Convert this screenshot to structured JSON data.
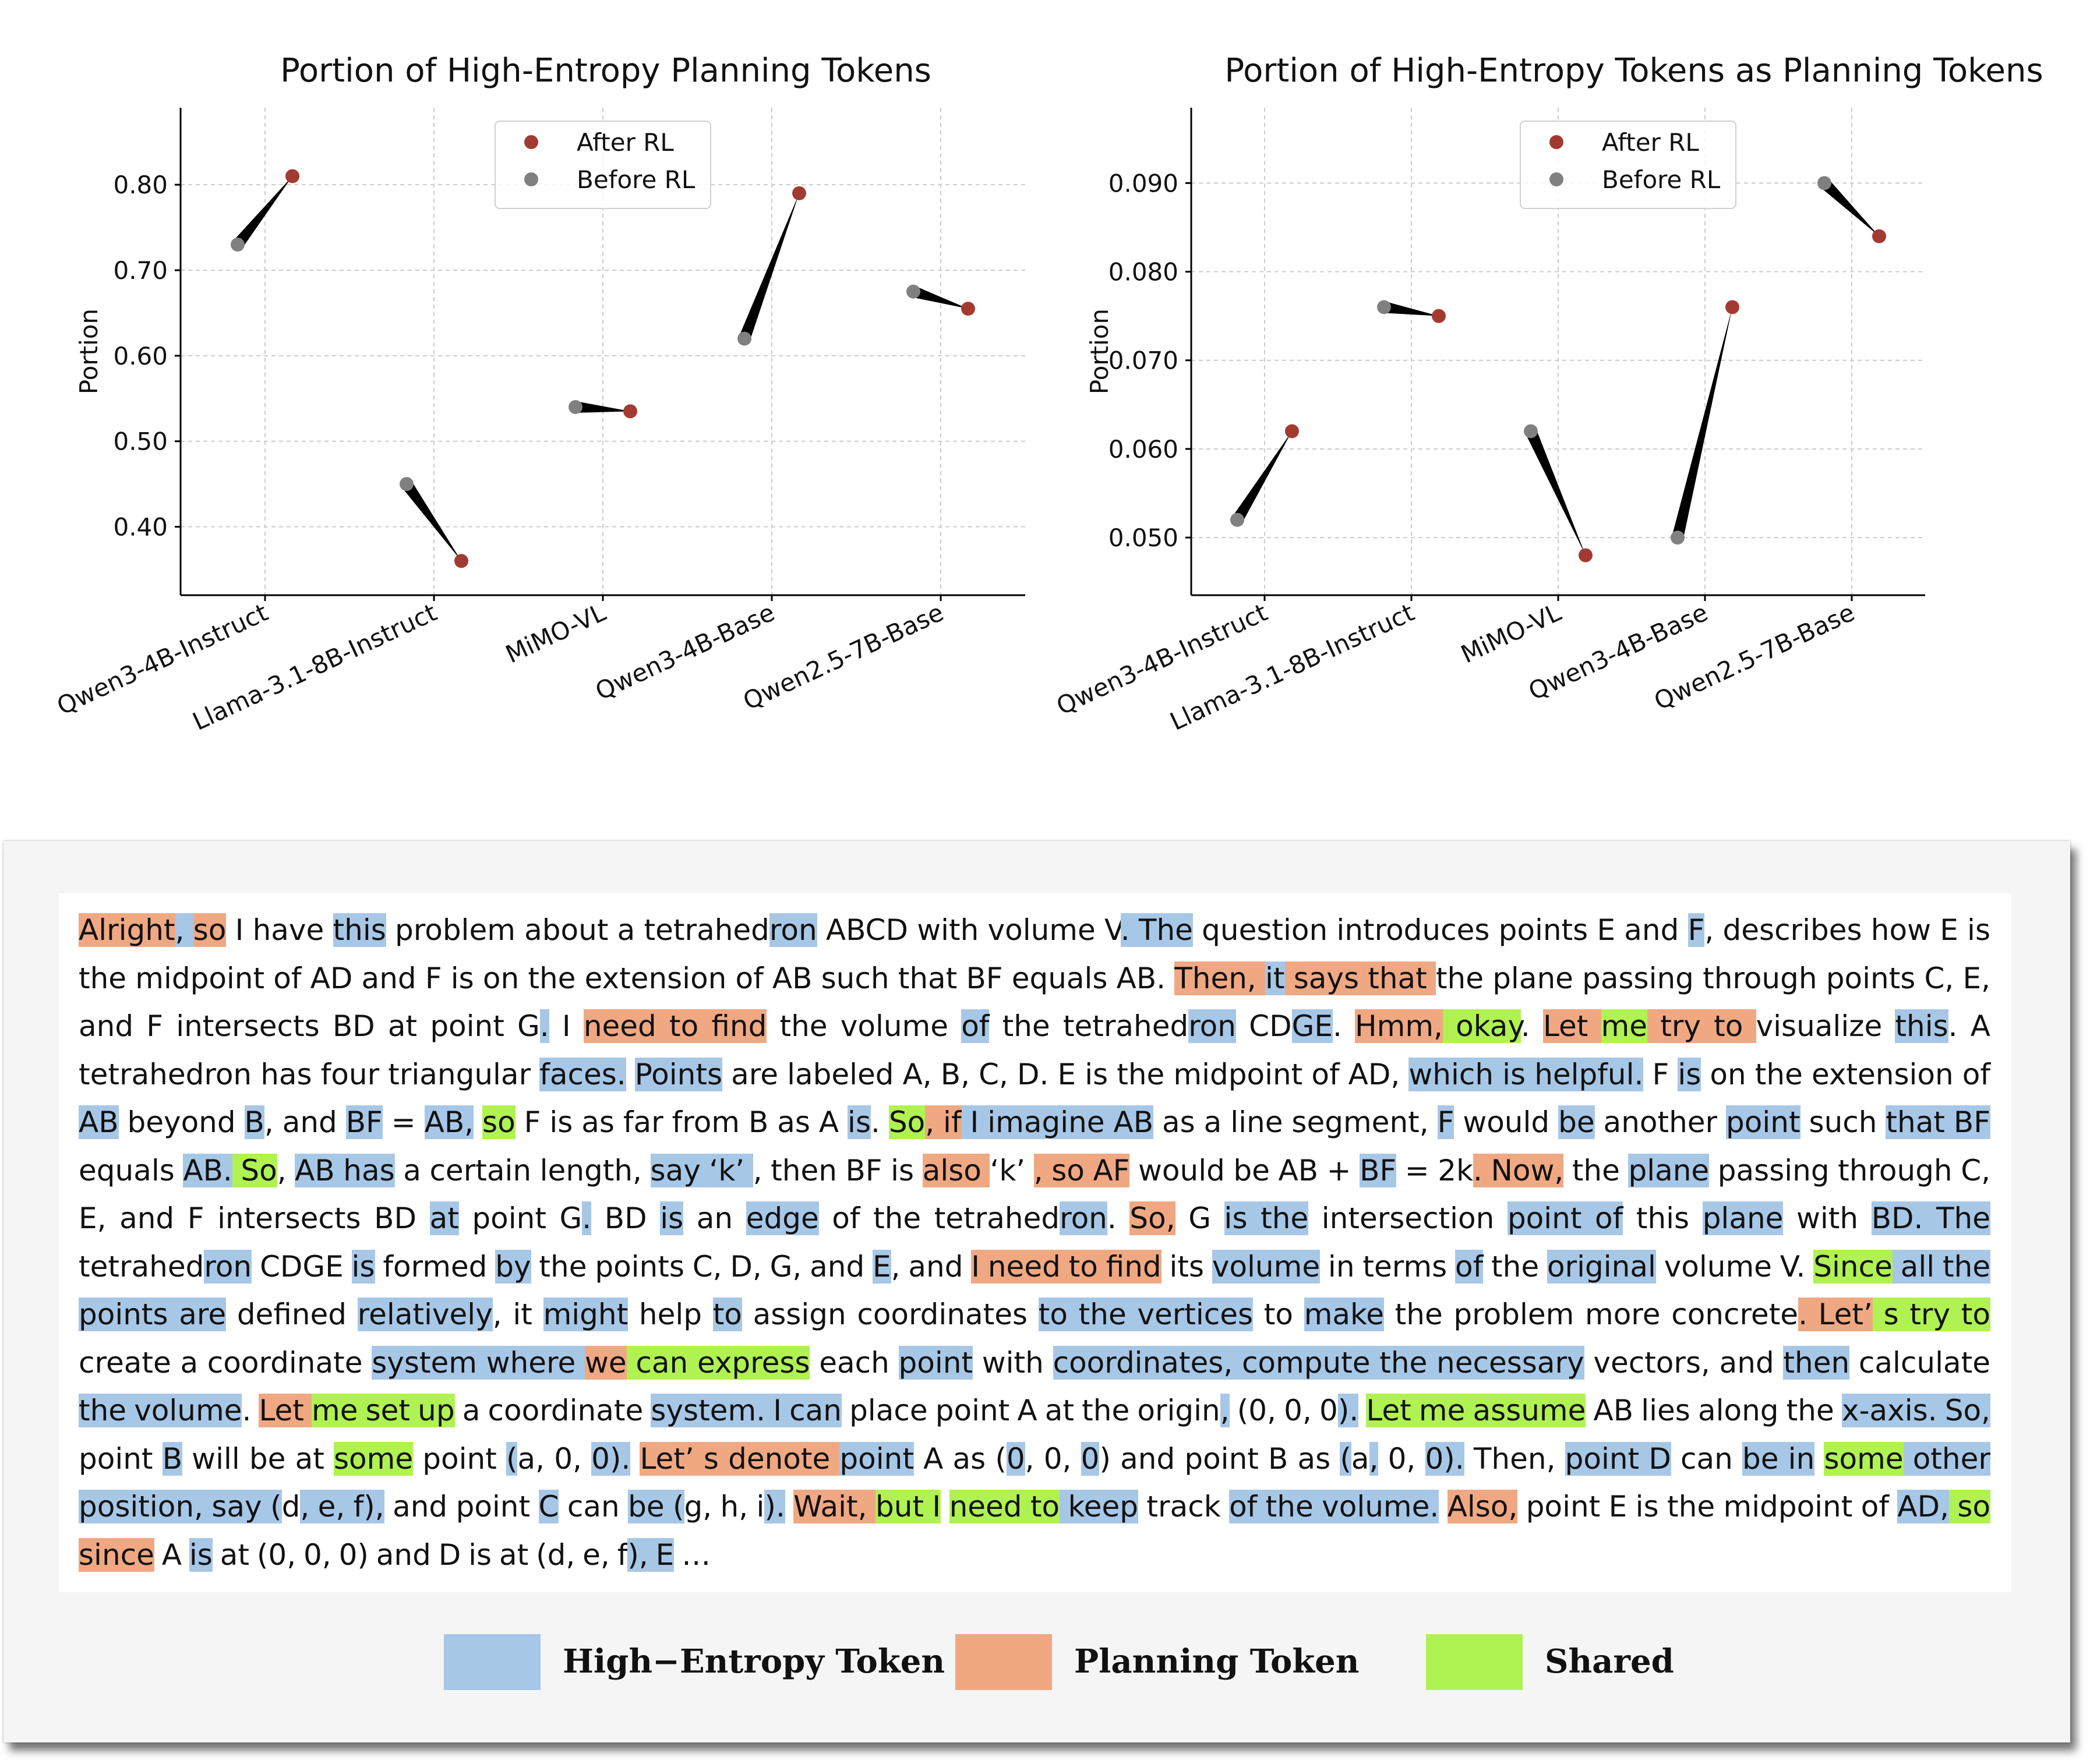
{
  "chart_data": [
    {
      "type": "dumbbell",
      "title": "Portion of High-Entropy Planning Tokens",
      "xlabel": "",
      "ylabel": "Portion",
      "categories": [
        "Qwen3-4B-Instruct",
        "Llama-3.1-8B-Instruct",
        "MiMO-VL",
        "Qwen3-4B-Base",
        "Qwen2.5-7B-Base"
      ],
      "series": [
        {
          "name": "Before RL",
          "color": "#808080",
          "values": [
            0.73,
            0.45,
            0.54,
            0.62,
            0.675
          ]
        },
        {
          "name": "After RL",
          "color": "#a33a32",
          "values": [
            0.81,
            0.36,
            0.535,
            0.79,
            0.655
          ]
        }
      ],
      "yticks": [
        "0.40",
        "0.50",
        "0.60",
        "0.70",
        "0.80"
      ],
      "ylim": [
        0.32,
        0.89
      ],
      "grid": true,
      "legend": "top-center"
    },
    {
      "type": "dumbbell",
      "title": "Portion of High-Entropy Tokens as Planning Tokens",
      "xlabel": "",
      "ylabel": "Portion",
      "categories": [
        "Qwen3-4B-Instruct",
        "Llama-3.1-8B-Instruct",
        "MiMO-VL",
        "Qwen3-4B-Base",
        "Qwen2.5-7B-Base"
      ],
      "series": [
        {
          "name": "Before RL",
          "color": "#808080",
          "values": [
            0.052,
            0.076,
            0.062,
            0.05,
            0.09
          ]
        },
        {
          "name": "After RL",
          "color": "#a33a32",
          "values": [
            0.062,
            0.075,
            0.048,
            0.076,
            0.084
          ]
        }
      ],
      "yticks": [
        "0.050",
        "0.060",
        "0.070",
        "0.080",
        "0.090"
      ],
      "ylim": [
        0.0435,
        0.0985
      ],
      "grid": true,
      "legend": "top-center"
    }
  ],
  "passage": {
    "segments": [
      [
        "Alright",
        "p"
      ],
      [
        ", ",
        "h"
      ],
      [
        "so",
        "p"
      ],
      [
        " I have ",
        ""
      ],
      [
        "this",
        "h"
      ],
      [
        " problem about a tetrahed",
        ""
      ],
      [
        "ron",
        "h"
      ],
      [
        " ABCD with volume V",
        ""
      ],
      [
        ". The",
        "h"
      ],
      [
        " question introduces points E and ",
        ""
      ],
      [
        "F",
        "h"
      ],
      [
        ", describes how E is the midpoint of AD and F is on the extension of AB such that BF equals AB. ",
        ""
      ],
      [
        "Then, ",
        "p"
      ],
      [
        "it",
        "h"
      ],
      [
        " says that ",
        "p"
      ],
      [
        "the plane passing through points C, E, and F intersects BD at point G",
        ""
      ],
      [
        ".",
        "h"
      ],
      [
        " I ",
        ""
      ],
      [
        "need to find",
        "p"
      ],
      [
        " the volume ",
        ""
      ],
      [
        "of",
        "h"
      ],
      [
        " the tetrahed",
        ""
      ],
      [
        "ron",
        "h"
      ],
      [
        " CD",
        ""
      ],
      [
        "GE",
        "h"
      ],
      [
        ". ",
        ""
      ],
      [
        "Hmm,",
        "p"
      ],
      [
        " okay",
        "s"
      ],
      [
        ". ",
        ""
      ],
      [
        "Let ",
        "p"
      ],
      [
        "me",
        "s"
      ],
      [
        " try to ",
        "p"
      ],
      [
        "visualize ",
        ""
      ],
      [
        "this",
        "h"
      ],
      [
        ". A tetrahedron has four triangular ",
        ""
      ],
      [
        "faces.",
        "h"
      ],
      [
        " ",
        ""
      ],
      [
        "Points",
        "h"
      ],
      [
        " are labeled A, B, C, D. E is the midpoint of AD, ",
        ""
      ],
      [
        "which is helpful.",
        "h"
      ],
      [
        " F ",
        ""
      ],
      [
        "is",
        "h"
      ],
      [
        " on the extension of ",
        ""
      ],
      [
        "AB",
        "h"
      ],
      [
        " beyond ",
        ""
      ],
      [
        "B",
        "h"
      ],
      [
        ", and ",
        ""
      ],
      [
        "BF",
        "h"
      ],
      [
        " = ",
        ""
      ],
      [
        "AB,",
        "h"
      ],
      [
        " ",
        ""
      ],
      [
        "so",
        "s"
      ],
      [
        " F is as far from B as A ",
        ""
      ],
      [
        "is",
        "h"
      ],
      [
        ". ",
        ""
      ],
      [
        "So",
        "s"
      ],
      [
        ", if",
        "p"
      ],
      [
        " I imagine AB",
        "h"
      ],
      [
        " as a line segment, ",
        ""
      ],
      [
        "F",
        "h"
      ],
      [
        " would ",
        ""
      ],
      [
        "be",
        "h"
      ],
      [
        " another ",
        ""
      ],
      [
        "point",
        "h"
      ],
      [
        " such ",
        ""
      ],
      [
        "that BF",
        "h"
      ],
      [
        " equals ",
        ""
      ],
      [
        "AB.",
        "h"
      ],
      [
        " So",
        "s"
      ],
      [
        ", ",
        ""
      ],
      [
        "AB has",
        "h"
      ],
      [
        " a certain length, ",
        ""
      ],
      [
        "say  ‘k’ ",
        "h"
      ],
      [
        ", then BF is ",
        ""
      ],
      [
        "also ",
        "p"
      ],
      [
        "  ‘k’  ",
        ""
      ],
      [
        ", so AF",
        "p"
      ],
      [
        " would be AB + ",
        ""
      ],
      [
        "BF",
        "h"
      ],
      [
        " = 2k",
        ""
      ],
      [
        ". Now,",
        "p"
      ],
      [
        " the ",
        ""
      ],
      [
        "plane",
        "h"
      ],
      [
        " passing through C, E, and F intersects BD ",
        ""
      ],
      [
        "at",
        "h"
      ],
      [
        " point G",
        ""
      ],
      [
        ".",
        "h"
      ],
      [
        " BD ",
        ""
      ],
      [
        "is",
        "h"
      ],
      [
        " an ",
        ""
      ],
      [
        "edge",
        "h"
      ],
      [
        " of the tetrahed",
        ""
      ],
      [
        "ron",
        "h"
      ],
      [
        ". ",
        ""
      ],
      [
        "So,",
        "p"
      ],
      [
        " G ",
        ""
      ],
      [
        "is the",
        "h"
      ],
      [
        " intersection ",
        ""
      ],
      [
        "point of",
        "h"
      ],
      [
        " this ",
        ""
      ],
      [
        "plane",
        "h"
      ],
      [
        " with ",
        ""
      ],
      [
        "BD. The",
        "h"
      ],
      [
        " tetrahed",
        ""
      ],
      [
        "ron",
        "h"
      ],
      [
        " CDGE ",
        ""
      ],
      [
        "is",
        "h"
      ],
      [
        " formed ",
        ""
      ],
      [
        "by",
        "h"
      ],
      [
        " the points C, D, G, and ",
        ""
      ],
      [
        "E",
        "h"
      ],
      [
        ", and ",
        ""
      ],
      [
        "I need to find",
        "p"
      ],
      [
        " its ",
        ""
      ],
      [
        "volume",
        "h"
      ],
      [
        " in terms ",
        ""
      ],
      [
        "of",
        "h"
      ],
      [
        " the ",
        ""
      ],
      [
        "original",
        "h"
      ],
      [
        " volume V. ",
        ""
      ],
      [
        "Since",
        "s"
      ],
      [
        " all the points are",
        "h"
      ],
      [
        " defined ",
        ""
      ],
      [
        "relatively",
        "h"
      ],
      [
        ", it ",
        ""
      ],
      [
        "might",
        "h"
      ],
      [
        " help ",
        ""
      ],
      [
        "to",
        "h"
      ],
      [
        " assign coordinates ",
        ""
      ],
      [
        "to the vertices",
        "h"
      ],
      [
        " to ",
        ""
      ],
      [
        "make",
        "h"
      ],
      [
        " the problem more concrete",
        ""
      ],
      [
        ". Let’",
        "p"
      ],
      [
        " s try to",
        "s"
      ],
      [
        " create a coordinate ",
        ""
      ],
      [
        "system where ",
        "h"
      ],
      [
        "we",
        "p"
      ],
      [
        " can express",
        "s"
      ],
      [
        " each ",
        ""
      ],
      [
        "point",
        "h"
      ],
      [
        " with ",
        ""
      ],
      [
        "coordinates, compute the necessary",
        "h"
      ],
      [
        " vectors, and ",
        ""
      ],
      [
        "then",
        "h"
      ],
      [
        " calculate ",
        ""
      ],
      [
        "the volume",
        "h"
      ],
      [
        ". ",
        ""
      ],
      [
        "Let ",
        "p"
      ],
      [
        "me set up",
        "s"
      ],
      [
        " a coordinate ",
        ""
      ],
      [
        "system. I can",
        "h"
      ],
      [
        " place point A at the origin",
        ""
      ],
      [
        ",",
        "h"
      ],
      [
        " (0, 0, 0",
        ""
      ],
      [
        ").",
        "h"
      ],
      [
        " ",
        ""
      ],
      [
        "Let me assume",
        "s"
      ],
      [
        " AB lies along the ",
        ""
      ],
      [
        "x-axis. So,",
        "h"
      ],
      [
        " point ",
        ""
      ],
      [
        "B",
        "h"
      ],
      [
        " will be at ",
        ""
      ],
      [
        "some",
        "s"
      ],
      [
        " point ",
        ""
      ],
      [
        "(",
        "h"
      ],
      [
        "a, 0, ",
        ""
      ],
      [
        "0).",
        "h"
      ],
      [
        " ",
        ""
      ],
      [
        "Let’ s denote ",
        "p"
      ],
      [
        "point",
        "h"
      ],
      [
        " A as (",
        ""
      ],
      [
        "0",
        "h"
      ],
      [
        ", 0, ",
        ""
      ],
      [
        "0",
        "h"
      ],
      [
        ") and point B as ",
        ""
      ],
      [
        "(",
        "h"
      ],
      [
        "a",
        ""
      ],
      [
        ",",
        "h"
      ],
      [
        " 0, ",
        ""
      ],
      [
        "0).",
        "h"
      ],
      [
        " Then, ",
        ""
      ],
      [
        "point D",
        "h"
      ],
      [
        " can ",
        ""
      ],
      [
        "be in",
        "h"
      ],
      [
        " ",
        ""
      ],
      [
        "some",
        "s"
      ],
      [
        " other position, say (",
        "h"
      ],
      [
        "d",
        ""
      ],
      [
        ", e, f),",
        "h"
      ],
      [
        " and point ",
        ""
      ],
      [
        "C",
        "h"
      ],
      [
        " can ",
        ""
      ],
      [
        "be (",
        "h"
      ],
      [
        "g, h, i",
        ""
      ],
      [
        ").",
        "h"
      ],
      [
        " ",
        ""
      ],
      [
        "Wait, ",
        "p"
      ],
      [
        "but I",
        "s"
      ],
      [
        " ",
        ""
      ],
      [
        "need to",
        "s"
      ],
      [
        " keep",
        "h"
      ],
      [
        " track ",
        ""
      ],
      [
        "of the volume.",
        "h"
      ],
      [
        " ",
        ""
      ],
      [
        "Also,",
        "p"
      ],
      [
        " point E is the midpoint of ",
        ""
      ],
      [
        "AD,",
        "h"
      ],
      [
        " so",
        "s"
      ],
      [
        " since",
        "p"
      ],
      [
        " A ",
        ""
      ],
      [
        "is",
        "h"
      ],
      [
        " at (0, 0, 0) and D is at (d, e, f",
        ""
      ],
      [
        "), E",
        "h"
      ],
      [
        " …",
        ""
      ]
    ]
  },
  "legend": [
    {
      "label": "High−Entropy Token",
      "color": "#a7c7e7"
    },
    {
      "label": "Planning Token",
      "color": "#f0a883"
    },
    {
      "label": "Shared",
      "color": "#b0f252"
    }
  ]
}
